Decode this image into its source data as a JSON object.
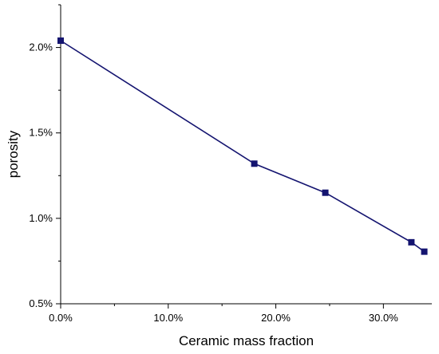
{
  "chart_data": {
    "type": "line",
    "title": "",
    "xlabel": "Ceramic mass fraction",
    "ylabel": "porosity",
    "xlim": [
      0,
      34.5
    ],
    "ylim": [
      0.5,
      2.25
    ],
    "x_ticks": [
      {
        "value": 0,
        "label": "0.0%"
      },
      {
        "value": 10,
        "label": "10.0%"
      },
      {
        "value": 20,
        "label": "20.0%"
      },
      {
        "value": 30,
        "label": "30.0%"
      }
    ],
    "y_ticks": [
      {
        "value": 0.5,
        "label": "0.5%"
      },
      {
        "value": 1.0,
        "label": "1.0%"
      },
      {
        "value": 1.5,
        "label": "1.5%"
      },
      {
        "value": 2.0,
        "label": "2.0%"
      }
    ],
    "grid": false,
    "series": [
      {
        "color": "#141470",
        "marker": "square",
        "points": [
          {
            "x": 0.0,
            "y": 2.04
          },
          {
            "x": 18.0,
            "y": 1.32
          },
          {
            "x": 24.6,
            "y": 1.15
          },
          {
            "x": 32.6,
            "y": 0.86
          },
          {
            "x": 33.8,
            "y": 0.805
          }
        ]
      }
    ]
  }
}
